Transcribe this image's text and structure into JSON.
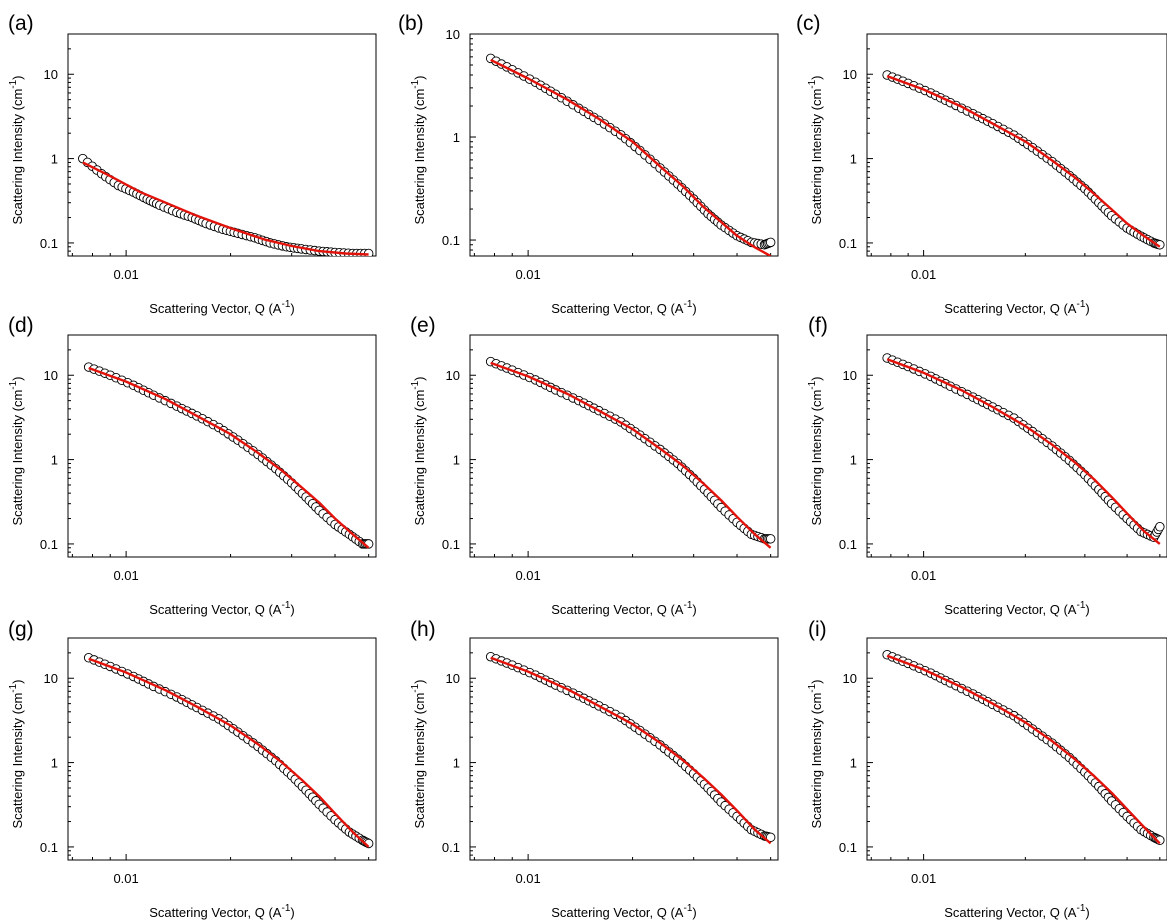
{
  "chart_data": [
    {
      "panel": "(a)",
      "type": "scatter",
      "xlabel": "Scattering Vector, Q (A-1)",
      "ylabel": "Scattering Intensity (cm-1)",
      "xscale": "log",
      "yscale": "log",
      "xticks": [
        "0.01"
      ],
      "yticks": [
        "0.1",
        "1",
        "10"
      ],
      "ylim": [
        0.07,
        30
      ],
      "grid": false,
      "series": [
        {
          "type": "scatter",
          "x": [
            0.0075,
            0.0085,
            0.0095,
            0.0105,
            0.0115,
            0.0125,
            0.014,
            0.0155,
            0.017,
            0.019,
            0.021,
            0.0235,
            0.026,
            0.029,
            0.032,
            0.036,
            0.04,
            0.045,
            0.05
          ],
          "y": [
            1.0,
            0.66,
            0.48,
            0.4,
            0.33,
            0.28,
            0.23,
            0.2,
            0.17,
            0.145,
            0.13,
            0.115,
            0.1,
            0.09,
            0.085,
            0.08,
            0.077,
            0.075,
            0.075
          ]
        },
        {
          "type": "line",
          "x": [
            0.0075,
            0.009,
            0.011,
            0.013,
            0.016,
            0.02,
            0.025,
            0.03,
            0.036,
            0.043,
            0.05
          ],
          "y": [
            0.9,
            0.62,
            0.4,
            0.3,
            0.21,
            0.15,
            0.11,
            0.092,
            0.08,
            0.075,
            0.073
          ]
        }
      ]
    },
    {
      "panel": "(b)",
      "type": "scatter",
      "xlabel": "Scattering Vector, Q (A-1)",
      "ylabel": "Scattering Intensity (cm-1)",
      "xscale": "log",
      "yscale": "log",
      "xticks": [
        "0.01"
      ],
      "yticks": [
        "0.1",
        "1",
        "10"
      ],
      "ylim": [
        0.07,
        10
      ],
      "grid": false,
      "series": [
        {
          "type": "scatter",
          "x": [
            0.0078,
            0.009,
            0.0105,
            0.012,
            0.014,
            0.016,
            0.0185,
            0.021,
            0.024,
            0.027,
            0.03,
            0.033,
            0.036,
            0.04,
            0.044,
            0.048,
            0.05
          ],
          "y": [
            5.8,
            4.5,
            3.4,
            2.6,
            1.9,
            1.45,
            1.05,
            0.74,
            0.5,
            0.35,
            0.25,
            0.18,
            0.14,
            0.11,
            0.095,
            0.09,
            0.095
          ]
        },
        {
          "type": "line",
          "x": [
            0.0078,
            0.01,
            0.013,
            0.016,
            0.02,
            0.024,
            0.028,
            0.032,
            0.036,
            0.04,
            0.045,
            0.05
          ],
          "y": [
            5.6,
            3.7,
            2.3,
            1.5,
            0.9,
            0.52,
            0.33,
            0.21,
            0.15,
            0.11,
            0.085,
            0.07
          ]
        }
      ]
    },
    {
      "panel": "(c)",
      "type": "scatter",
      "xlabel": "Scattering Vector, Q (A-1)",
      "ylabel": "Scattering Intensity (cm-1)",
      "xscale": "log",
      "yscale": "log",
      "xticks": [
        "0.01"
      ],
      "yticks": [
        "0.1",
        "1",
        "10"
      ],
      "ylim": [
        0.07,
        30
      ],
      "grid": false,
      "series": [
        {
          "type": "scatter",
          "x": [
            0.0078,
            0.009,
            0.0105,
            0.012,
            0.014,
            0.016,
            0.0185,
            0.021,
            0.024,
            0.027,
            0.03,
            0.033,
            0.036,
            0.04,
            0.044,
            0.048,
            0.05
          ],
          "y": [
            9.8,
            7.8,
            6.0,
            4.6,
            3.4,
            2.6,
            1.9,
            1.35,
            0.92,
            0.63,
            0.44,
            0.3,
            0.21,
            0.15,
            0.12,
            0.1,
            0.095
          ]
        },
        {
          "type": "line",
          "x": [
            0.0078,
            0.01,
            0.013,
            0.016,
            0.02,
            0.024,
            0.028,
            0.032,
            0.036,
            0.04,
            0.045,
            0.05
          ],
          "y": [
            9.5,
            6.6,
            4.1,
            2.6,
            1.6,
            0.95,
            0.6,
            0.38,
            0.25,
            0.17,
            0.12,
            0.09
          ]
        }
      ]
    },
    {
      "panel": "(d)",
      "type": "scatter",
      "xlabel": "Scattering Vector, Q (A-1)",
      "ylabel": "Scattering Intensity (cm-1)",
      "xscale": "log",
      "yscale": "log",
      "xticks": [
        "0.01"
      ],
      "yticks": [
        "0.1",
        "1",
        "10"
      ],
      "ylim": [
        0.07,
        30
      ],
      "grid": false,
      "series": [
        {
          "type": "scatter",
          "x": [
            0.0078,
            0.009,
            0.0105,
            0.012,
            0.014,
            0.016,
            0.0185,
            0.021,
            0.024,
            0.027,
            0.03,
            0.033,
            0.036,
            0.04,
            0.044,
            0.048,
            0.05
          ],
          "y": [
            12.5,
            10.0,
            7.6,
            5.8,
            4.3,
            3.3,
            2.4,
            1.7,
            1.15,
            0.78,
            0.53,
            0.36,
            0.25,
            0.17,
            0.13,
            0.1,
            0.1
          ]
        },
        {
          "type": "line",
          "x": [
            0.0078,
            0.01,
            0.013,
            0.016,
            0.02,
            0.024,
            0.028,
            0.032,
            0.036,
            0.04,
            0.045,
            0.05
          ],
          "y": [
            12.2,
            8.4,
            5.2,
            3.3,
            2.0,
            1.2,
            0.75,
            0.47,
            0.31,
            0.2,
            0.13,
            0.09
          ]
        }
      ]
    },
    {
      "panel": "(e)",
      "type": "scatter",
      "xlabel": "Scattering Vector, Q (A-1)",
      "ylabel": "Scattering Intensity (cm-1)",
      "xscale": "log",
      "yscale": "log",
      "xticks": [
        "0.01"
      ],
      "yticks": [
        "0.1",
        "1",
        "10"
      ],
      "ylim": [
        0.07,
        30
      ],
      "grid": false,
      "series": [
        {
          "type": "scatter",
          "x": [
            0.0078,
            0.009,
            0.0105,
            0.012,
            0.014,
            0.016,
            0.0185,
            0.021,
            0.024,
            0.027,
            0.03,
            0.033,
            0.036,
            0.04,
            0.044,
            0.048,
            0.05
          ],
          "y": [
            14.5,
            11.5,
            8.8,
            6.7,
            5.0,
            3.8,
            2.8,
            1.95,
            1.32,
            0.9,
            0.6,
            0.4,
            0.27,
            0.18,
            0.13,
            0.115,
            0.115
          ]
        },
        {
          "type": "line",
          "x": [
            0.0078,
            0.01,
            0.013,
            0.016,
            0.02,
            0.024,
            0.028,
            0.032,
            0.036,
            0.04,
            0.045,
            0.05
          ],
          "y": [
            14.0,
            9.7,
            6.0,
            3.8,
            2.3,
            1.35,
            0.84,
            0.52,
            0.33,
            0.21,
            0.13,
            0.09
          ]
        }
      ]
    },
    {
      "panel": "(f)",
      "type": "scatter",
      "xlabel": "Scattering Vector, Q (A-1)",
      "ylabel": "Scattering Intensity (cm-1)",
      "xscale": "log",
      "yscale": "log",
      "xticks": [
        "0.01"
      ],
      "yticks": [
        "0.1",
        "1",
        "10"
      ],
      "ylim": [
        0.07,
        30
      ],
      "grid": false,
      "series": [
        {
          "type": "scatter",
          "x": [
            0.0078,
            0.009,
            0.0105,
            0.012,
            0.014,
            0.016,
            0.0185,
            0.021,
            0.024,
            0.027,
            0.03,
            0.033,
            0.036,
            0.04,
            0.044,
            0.048,
            0.05
          ],
          "y": [
            16.0,
            12.7,
            9.7,
            7.4,
            5.5,
            4.2,
            3.1,
            2.15,
            1.45,
            0.98,
            0.66,
            0.44,
            0.3,
            0.2,
            0.14,
            0.12,
            0.16
          ]
        },
        {
          "type": "line",
          "x": [
            0.0078,
            0.01,
            0.013,
            0.016,
            0.02,
            0.024,
            0.028,
            0.032,
            0.036,
            0.04,
            0.045,
            0.05
          ],
          "y": [
            15.5,
            10.7,
            6.6,
            4.2,
            2.5,
            1.5,
            0.93,
            0.58,
            0.36,
            0.23,
            0.14,
            0.1
          ]
        }
      ]
    },
    {
      "panel": "(g)",
      "type": "scatter",
      "xlabel": "Scattering Vector, Q (A-1)",
      "ylabel": "Scattering Intensity (cm-1)",
      "xscale": "log",
      "yscale": "log",
      "xticks": [
        "0.01"
      ],
      "yticks": [
        "0.1",
        "1",
        "10"
      ],
      "ylim": [
        0.07,
        30
      ],
      "grid": false,
      "series": [
        {
          "type": "scatter",
          "x": [
            0.0078,
            0.009,
            0.0105,
            0.012,
            0.014,
            0.016,
            0.0185,
            0.021,
            0.024,
            0.027,
            0.03,
            0.033,
            0.036,
            0.04,
            0.044,
            0.048,
            0.05
          ],
          "y": [
            17.5,
            13.8,
            10.5,
            8.0,
            6.0,
            4.5,
            3.3,
            2.3,
            1.55,
            1.05,
            0.7,
            0.47,
            0.32,
            0.21,
            0.15,
            0.12,
            0.11
          ]
        },
        {
          "type": "line",
          "x": [
            0.0078,
            0.01,
            0.013,
            0.016,
            0.02,
            0.024,
            0.028,
            0.032,
            0.036,
            0.04,
            0.045,
            0.05
          ],
          "y": [
            17.0,
            11.7,
            7.2,
            4.6,
            2.75,
            1.65,
            1.02,
            0.63,
            0.4,
            0.25,
            0.15,
            0.1
          ]
        }
      ]
    },
    {
      "panel": "(h)",
      "type": "scatter",
      "xlabel": "Scattering Vector, Q (A-1)",
      "ylabel": "Scattering Intensity (cm-1)",
      "xscale": "log",
      "yscale": "log",
      "xticks": [
        "0.01"
      ],
      "yticks": [
        "0.1",
        "1",
        "10"
      ],
      "ylim": [
        0.07,
        30
      ],
      "grid": false,
      "series": [
        {
          "type": "scatter",
          "x": [
            0.0078,
            0.009,
            0.0105,
            0.012,
            0.014,
            0.016,
            0.0185,
            0.021,
            0.024,
            0.027,
            0.03,
            0.033,
            0.036,
            0.04,
            0.044,
            0.048,
            0.05
          ],
          "y": [
            18.0,
            14.3,
            10.9,
            8.3,
            6.2,
            4.7,
            3.45,
            2.4,
            1.62,
            1.1,
            0.74,
            0.5,
            0.34,
            0.23,
            0.16,
            0.135,
            0.13
          ]
        },
        {
          "type": "line",
          "x": [
            0.0078,
            0.01,
            0.013,
            0.016,
            0.02,
            0.024,
            0.028,
            0.032,
            0.036,
            0.04,
            0.045,
            0.05
          ],
          "y": [
            17.5,
            12.0,
            7.4,
            4.7,
            2.85,
            1.72,
            1.06,
            0.66,
            0.42,
            0.27,
            0.16,
            0.11
          ]
        }
      ]
    },
    {
      "panel": "(i)",
      "type": "scatter",
      "xlabel": "Scattering Vector, Q (A-1)",
      "ylabel": "Scattering Intensity (cm-1)",
      "xscale": "log",
      "yscale": "log",
      "xticks": [
        "0.01"
      ],
      "yticks": [
        "0.1",
        "1",
        "10"
      ],
      "ylim": [
        0.07,
        30
      ],
      "grid": false,
      "series": [
        {
          "type": "scatter",
          "x": [
            0.0078,
            0.009,
            0.0105,
            0.012,
            0.014,
            0.016,
            0.0185,
            0.021,
            0.024,
            0.027,
            0.03,
            0.033,
            0.036,
            0.04,
            0.044,
            0.048,
            0.05
          ],
          "y": [
            19.0,
            15.0,
            11.5,
            8.8,
            6.5,
            4.9,
            3.6,
            2.5,
            1.7,
            1.15,
            0.77,
            0.52,
            0.35,
            0.23,
            0.16,
            0.13,
            0.12
          ]
        },
        {
          "type": "line",
          "x": [
            0.0078,
            0.01,
            0.013,
            0.016,
            0.02,
            0.024,
            0.028,
            0.032,
            0.036,
            0.04,
            0.045,
            0.05
          ],
          "y": [
            18.5,
            12.7,
            7.8,
            5.0,
            3.0,
            1.8,
            1.1,
            0.69,
            0.44,
            0.28,
            0.17,
            0.11
          ]
        }
      ]
    }
  ],
  "style": {
    "marker_edge": "#000000",
    "marker_fill": "#ffffff",
    "fit_color": "#e3120b",
    "axis_color": "#000000"
  }
}
